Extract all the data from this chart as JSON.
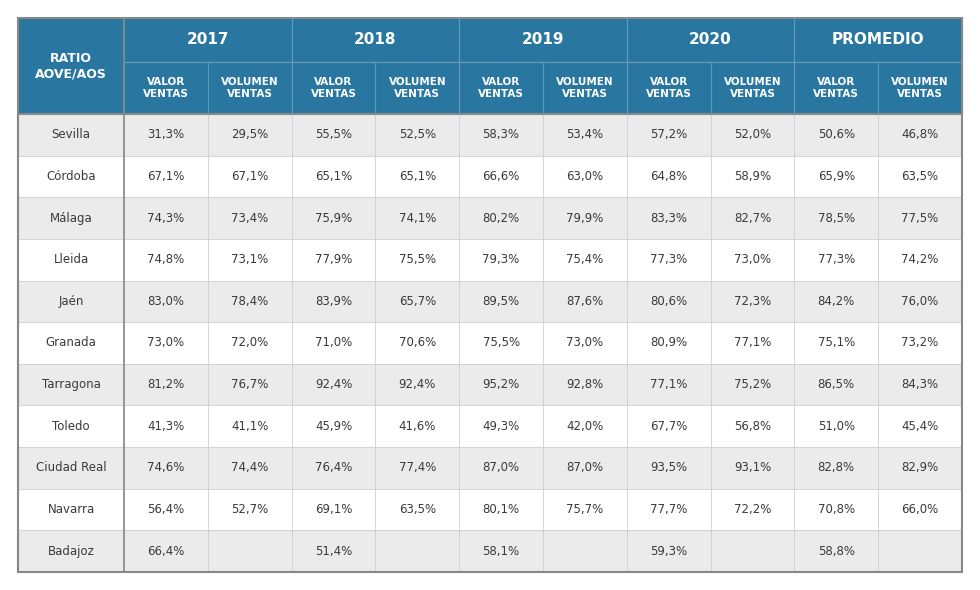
{
  "header_bg_color": "#2977A0",
  "header_text_color": "#FFFFFF",
  "row_bg_even": "#EBEBEB",
  "row_bg_odd": "#FFFFFF",
  "border_color_light": "#BBBBBB",
  "border_color_dark": "#999999",
  "text_color": "#3A3A3A",
  "col0_header": "RATIO\nAOVE/AOS",
  "year_headers": [
    "2017",
    "2018",
    "2019",
    "2020",
    "PROMEDIO"
  ],
  "sub_headers": [
    "VALOR\nVENTAS",
    "VOLUMEN\nVENTAS"
  ],
  "provinces": [
    "Sevilla",
    "Córdoba",
    "Málaga",
    "Lleida",
    "Jaén",
    "Granada",
    "Tarragona",
    "Toledo",
    "Ciudad Real",
    "Navarra",
    "Badajoz"
  ],
  "data": [
    [
      "31,3%",
      "29,5%",
      "55,5%",
      "52,5%",
      "58,3%",
      "53,4%",
      "57,2%",
      "52,0%",
      "50,6%",
      "46,8%"
    ],
    [
      "67,1%",
      "67,1%",
      "65,1%",
      "65,1%",
      "66,6%",
      "63,0%",
      "64,8%",
      "58,9%",
      "65,9%",
      "63,5%"
    ],
    [
      "74,3%",
      "73,4%",
      "75,9%",
      "74,1%",
      "80,2%",
      "79,9%",
      "83,3%",
      "82,7%",
      "78,5%",
      "77,5%"
    ],
    [
      "74,8%",
      "73,1%",
      "77,9%",
      "75,5%",
      "79,3%",
      "75,4%",
      "77,3%",
      "73,0%",
      "77,3%",
      "74,2%"
    ],
    [
      "83,0%",
      "78,4%",
      "83,9%",
      "65,7%",
      "89,5%",
      "87,6%",
      "80,6%",
      "72,3%",
      "84,2%",
      "76,0%"
    ],
    [
      "73,0%",
      "72,0%",
      "71,0%",
      "70,6%",
      "75,5%",
      "73,0%",
      "80,9%",
      "77,1%",
      "75,1%",
      "73,2%"
    ],
    [
      "81,2%",
      "76,7%",
      "92,4%",
      "92,4%",
      "95,2%",
      "92,8%",
      "77,1%",
      "75,2%",
      "86,5%",
      "84,3%"
    ],
    [
      "41,3%",
      "41,1%",
      "45,9%",
      "41,6%",
      "49,3%",
      "42,0%",
      "67,7%",
      "56,8%",
      "51,0%",
      "45,4%"
    ],
    [
      "74,6%",
      "74,4%",
      "76,4%",
      "77,4%",
      "87,0%",
      "87,0%",
      "93,5%",
      "93,1%",
      "82,8%",
      "82,9%"
    ],
    [
      "56,4%",
      "52,7%",
      "69,1%",
      "63,5%",
      "80,1%",
      "75,7%",
      "77,7%",
      "72,2%",
      "70,8%",
      "66,0%"
    ],
    [
      "66,4%",
      "",
      "51,4%",
      "",
      "58,1%",
      "",
      "59,3%",
      "",
      "58,8%",
      ""
    ]
  ]
}
